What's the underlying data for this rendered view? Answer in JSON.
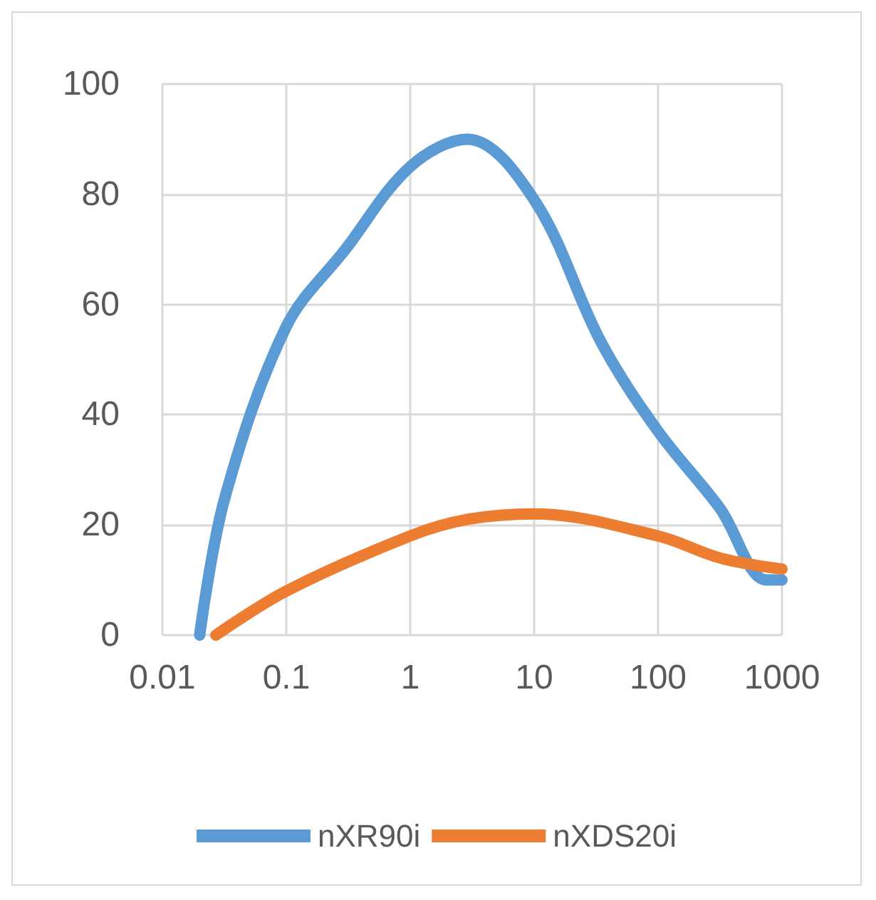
{
  "chart_data": {
    "type": "line",
    "log": "x",
    "xlim": [
      0.01,
      1000
    ],
    "xticks": [
      0.01,
      0.1,
      1,
      10,
      100,
      1000
    ],
    "ylim": [
      0,
      100
    ],
    "yticks": [
      0,
      20,
      40,
      60,
      80,
      100
    ],
    "grid": true,
    "legend": "bottom",
    "marker": "none",
    "line_style": "solid",
    "series": [
      {
        "name": "nXR90i",
        "color": "#5b9bd5",
        "x": [
          0.02,
          0.032,
          0.1,
          0.3,
          1,
          2.9,
          10,
          35,
          100,
          316,
          750,
          1000
        ],
        "values": [
          0,
          25,
          56,
          70,
          85,
          90,
          79,
          53,
          37,
          23,
          10,
          10
        ]
      },
      {
        "name": "nXDS20i",
        "color": "#ed7d31",
        "x": [
          0.027,
          0.1,
          1,
          2.9,
          10,
          100,
          316,
          1000
        ],
        "values": [
          0,
          8,
          18,
          21,
          22,
          18,
          14,
          12
        ]
      }
    ]
  }
}
